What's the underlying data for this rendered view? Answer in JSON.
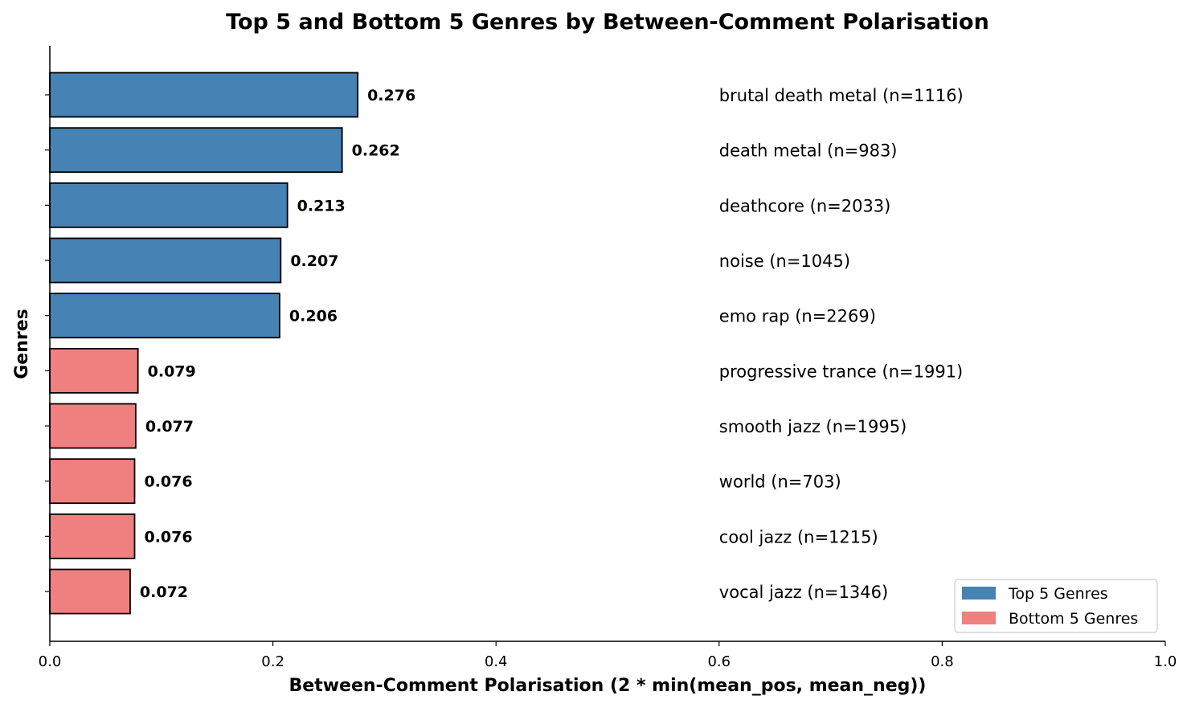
{
  "chart_data": {
    "type": "bar",
    "orientation": "horizontal",
    "title": "Top 5 and Bottom 5 Genres by Between-Comment Polarisation",
    "xlabel": "Between-Comment Polarisation (2 * min(mean_pos, mean_neg))",
    "ylabel": "Genres",
    "xlim": [
      0.0,
      1.0
    ],
    "xticks": [
      "0.0",
      "0.2",
      "0.4",
      "0.6",
      "0.8",
      "1.0"
    ],
    "grid": false,
    "legend_position": "lower-right",
    "series": [
      {
        "name": "Top 5 Genres",
        "color": "#4682b4",
        "categories": [
          "brutal death metal (n=1116)",
          "death metal (n=983)",
          "deathcore (n=2033)",
          "noise (n=1045)",
          "emo rap (n=2269)"
        ],
        "values": [
          0.276,
          0.262,
          0.213,
          0.207,
          0.206
        ],
        "value_labels": [
          "0.276",
          "0.262",
          "0.213",
          "0.207",
          "0.206"
        ]
      },
      {
        "name": "Bottom 5 Genres",
        "color": "#f08080",
        "categories": [
          "progressive trance (n=1991)",
          "smooth jazz (n=1995)",
          "world (n=703)",
          "cool jazz (n=1215)",
          "vocal jazz (n=1346)"
        ],
        "values": [
          0.079,
          0.077,
          0.076,
          0.076,
          0.072
        ],
        "value_labels": [
          "0.079",
          "0.077",
          "0.076",
          "0.076",
          "0.072"
        ]
      }
    ]
  }
}
